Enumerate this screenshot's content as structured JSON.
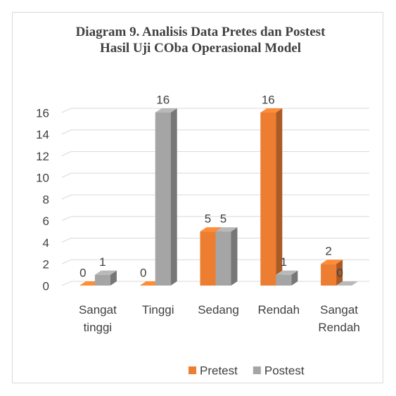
{
  "chart_data": {
    "type": "bar3d",
    "title": "Diagram 9. Analisis Data Pretes dan Postest Hasil Uji COba Operasional Model",
    "categories": [
      "Sangat tinggi",
      "Tinggi",
      "Sedang",
      "Rendah",
      "Sangat Rendah"
    ],
    "series": [
      {
        "name": "Pretest",
        "color": "#ed7d31",
        "values": [
          0,
          0,
          5,
          16,
          2
        ]
      },
      {
        "name": "Postest",
        "color": "#a5a5a5",
        "values": [
          1,
          16,
          5,
          1,
          0
        ]
      }
    ],
    "ylim": [
      0,
      16
    ],
    "yticks": [
      0,
      2,
      4,
      6,
      8,
      10,
      12,
      14,
      16
    ],
    "grid": true,
    "legend": "bottom"
  }
}
